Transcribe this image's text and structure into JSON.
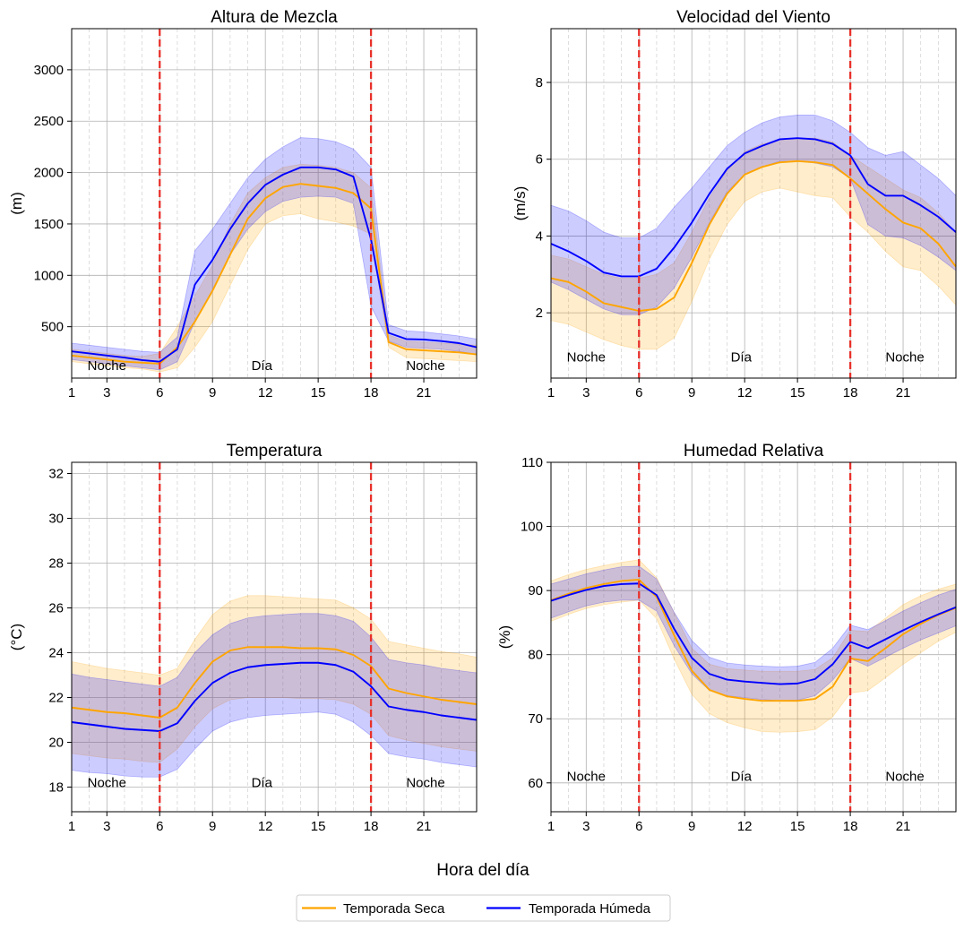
{
  "figure": {
    "xlabel": "Hora del día",
    "legend": {
      "placement": "bottom-center",
      "entries": [
        {
          "label": "Temporada Seca",
          "color": "#ffa500"
        },
        {
          "label": "Temporada Húmeda",
          "color": "#0000ff"
        }
      ]
    }
  },
  "chart_data": [
    {
      "type": "line",
      "title": "Altura de Mezcla",
      "ylabel": "(m)",
      "xlim": [
        1,
        24
      ],
      "ylim": [
        0,
        3400
      ],
      "xticks": [
        1,
        3,
        6,
        9,
        12,
        15,
        18,
        21
      ],
      "yticks": [
        500,
        1000,
        1500,
        2000,
        2500,
        3000
      ],
      "grid": true,
      "vlines": [
        6,
        18
      ],
      "region_labels": [
        {
          "x": 3,
          "text": "Noche"
        },
        {
          "x": 11.8,
          "text": "Día"
        },
        {
          "x": 21.1,
          "text": "Noche"
        }
      ],
      "region_label_y": 120,
      "x": [
        1,
        2,
        3,
        4,
        5,
        6,
        7,
        8,
        9,
        10,
        11,
        12,
        13,
        14,
        15,
        16,
        17,
        18,
        19,
        20,
        21,
        22,
        23,
        24
      ],
      "series": [
        {
          "name": "Temporada Seca",
          "color": "#ffa500",
          "values": [
            220,
            200,
            180,
            160,
            150,
            140,
            300,
            550,
            850,
            1200,
            1550,
            1750,
            1860,
            1890,
            1870,
            1850,
            1800,
            1650,
            350,
            280,
            270,
            260,
            250,
            230
          ],
          "upper": [
            280,
            260,
            240,
            220,
            210,
            240,
            500,
            800,
            1100,
            1500,
            1800,
            1950,
            2050,
            2080,
            2070,
            2050,
            2000,
            1850,
            420,
            360,
            350,
            340,
            330,
            320
          ],
          "lower": [
            160,
            140,
            120,
            100,
            90,
            60,
            100,
            300,
            550,
            900,
            1250,
            1500,
            1580,
            1600,
            1550,
            1520,
            1480,
            1400,
            300,
            200,
            190,
            180,
            170,
            160
          ]
        },
        {
          "name": "Temporada Húmeda",
          "color": "#0000ff",
          "values": [
            260,
            240,
            220,
            200,
            175,
            160,
            280,
            910,
            1150,
            1450,
            1700,
            1880,
            1980,
            2050,
            2050,
            2030,
            1960,
            1350,
            440,
            380,
            375,
            360,
            340,
            300
          ],
          "upper": [
            340,
            320,
            300,
            280,
            260,
            250,
            400,
            1240,
            1450,
            1700,
            1950,
            2130,
            2250,
            2340,
            2330,
            2300,
            2230,
            2050,
            520,
            460,
            450,
            430,
            410,
            380
          ],
          "lower": [
            180,
            160,
            140,
            120,
            100,
            80,
            160,
            550,
            850,
            1200,
            1450,
            1620,
            1720,
            1760,
            1770,
            1760,
            1700,
            700,
            360,
            300,
            290,
            280,
            260,
            230
          ]
        }
      ]
    },
    {
      "type": "line",
      "title": "Velocidad del Viento",
      "ylabel": "(m/s)",
      "xlim": [
        1,
        24
      ],
      "ylim": [
        0.3,
        9.4
      ],
      "xticks": [
        1,
        3,
        6,
        9,
        12,
        15,
        18,
        21
      ],
      "yticks": [
        2,
        4,
        6,
        8
      ],
      "grid": true,
      "vlines": [
        6,
        18
      ],
      "region_labels": [
        {
          "x": 3,
          "text": "Noche"
        },
        {
          "x": 11.8,
          "text": "Día"
        },
        {
          "x": 21.1,
          "text": "Noche"
        }
      ],
      "region_label_y": 0.85,
      "x": [
        1,
        2,
        3,
        4,
        5,
        6,
        7,
        8,
        9,
        10,
        11,
        12,
        13,
        14,
        15,
        16,
        17,
        18,
        19,
        20,
        21,
        22,
        23,
        24
      ],
      "series": [
        {
          "name": "Temporada Seca",
          "color": "#ffa500",
          "values": [
            2.9,
            2.8,
            2.55,
            2.25,
            2.15,
            2.05,
            2.1,
            2.4,
            3.3,
            4.3,
            5.1,
            5.6,
            5.8,
            5.92,
            5.95,
            5.92,
            5.85,
            5.5,
            5.1,
            4.7,
            4.35,
            4.2,
            3.8,
            3.2
          ],
          "upper": [
            3.5,
            3.4,
            3.2,
            3.0,
            2.9,
            2.9,
            3.0,
            3.3,
            4.1,
            5.0,
            5.7,
            6.2,
            6.4,
            6.5,
            6.55,
            6.55,
            6.45,
            6.1,
            5.8,
            5.5,
            5.2,
            5.0,
            4.6,
            4.1
          ],
          "lower": [
            1.8,
            1.7,
            1.5,
            1.3,
            1.15,
            1.05,
            1.05,
            1.35,
            2.3,
            3.4,
            4.3,
            4.9,
            5.15,
            5.25,
            5.15,
            5.05,
            5.0,
            4.5,
            4.1,
            3.6,
            3.2,
            3.1,
            2.7,
            2.2
          ]
        },
        {
          "name": "Temporada Húmeda",
          "color": "#0000ff",
          "values": [
            3.8,
            3.6,
            3.35,
            3.05,
            2.95,
            2.95,
            3.15,
            3.7,
            4.35,
            5.1,
            5.75,
            6.15,
            6.35,
            6.52,
            6.55,
            6.52,
            6.4,
            6.1,
            5.35,
            5.05,
            5.05,
            4.8,
            4.5,
            4.1
          ],
          "upper": [
            4.8,
            4.65,
            4.4,
            4.1,
            3.95,
            3.95,
            4.2,
            4.75,
            5.25,
            5.8,
            6.35,
            6.7,
            6.95,
            7.1,
            7.15,
            7.15,
            7.0,
            6.7,
            6.3,
            6.1,
            6.2,
            5.85,
            5.5,
            5.05
          ],
          "lower": [
            2.8,
            2.6,
            2.35,
            2.1,
            1.95,
            1.95,
            2.15,
            2.65,
            3.45,
            4.35,
            5.15,
            5.6,
            5.8,
            5.95,
            5.95,
            5.9,
            5.8,
            5.5,
            4.3,
            4.0,
            3.95,
            3.75,
            3.45,
            3.1
          ]
        }
      ]
    },
    {
      "type": "line",
      "title": "Temperatura",
      "ylabel": "(°C)",
      "xlim": [
        1,
        24
      ],
      "ylim": [
        16.9,
        32.5
      ],
      "xticks": [
        1,
        3,
        6,
        9,
        12,
        15,
        18,
        21
      ],
      "yticks": [
        18,
        20,
        22,
        24,
        26,
        28,
        30,
        32
      ],
      "grid": true,
      "vlines": [
        6,
        18
      ],
      "region_labels": [
        {
          "x": 3,
          "text": "Noche"
        },
        {
          "x": 11.8,
          "text": "Día"
        },
        {
          "x": 21.1,
          "text": "Noche"
        }
      ],
      "region_label_y": 18.2,
      "x": [
        1,
        2,
        3,
        4,
        5,
        6,
        7,
        8,
        9,
        10,
        11,
        12,
        13,
        14,
        15,
        16,
        17,
        18,
        19,
        20,
        21,
        22,
        23,
        24
      ],
      "series": [
        {
          "name": "Temporada Seca",
          "color": "#ffa500",
          "values": [
            21.55,
            21.45,
            21.35,
            21.3,
            21.2,
            21.1,
            21.55,
            22.65,
            23.6,
            24.1,
            24.25,
            24.25,
            24.25,
            24.2,
            24.2,
            24.15,
            23.9,
            23.4,
            22.4,
            22.2,
            22.05,
            21.9,
            21.8,
            21.7
          ],
          "upper": [
            23.6,
            23.45,
            23.3,
            23.2,
            23.1,
            23.0,
            23.3,
            24.6,
            25.7,
            26.3,
            26.55,
            26.55,
            26.5,
            26.45,
            26.4,
            26.35,
            26.0,
            25.5,
            24.5,
            24.35,
            24.2,
            24.05,
            23.95,
            23.8
          ],
          "lower": [
            19.5,
            19.4,
            19.3,
            19.25,
            19.15,
            19.1,
            19.7,
            20.7,
            21.5,
            21.9,
            22.0,
            22.0,
            22.0,
            21.95,
            21.95,
            21.9,
            21.7,
            21.25,
            20.3,
            20.1,
            19.95,
            19.8,
            19.7,
            19.6
          ]
        },
        {
          "name": "Temporada Húmeda",
          "color": "#0000ff",
          "values": [
            20.9,
            20.8,
            20.7,
            20.6,
            20.55,
            20.5,
            20.85,
            21.85,
            22.65,
            23.1,
            23.35,
            23.45,
            23.5,
            23.55,
            23.55,
            23.45,
            23.15,
            22.5,
            21.6,
            21.45,
            21.35,
            21.2,
            21.1,
            21.0
          ],
          "upper": [
            23.05,
            22.9,
            22.8,
            22.7,
            22.6,
            22.5,
            22.9,
            24.0,
            24.8,
            25.3,
            25.55,
            25.65,
            25.7,
            25.75,
            25.75,
            25.65,
            25.4,
            24.7,
            23.7,
            23.55,
            23.45,
            23.3,
            23.2,
            23.1
          ],
          "lower": [
            18.75,
            18.65,
            18.6,
            18.5,
            18.45,
            18.45,
            18.8,
            19.7,
            20.5,
            20.9,
            21.1,
            21.2,
            21.25,
            21.3,
            21.35,
            21.25,
            20.9,
            20.3,
            19.5,
            19.35,
            19.25,
            19.1,
            19.0,
            18.9
          ]
        }
      ]
    },
    {
      "type": "line",
      "title": "Humedad Relativa",
      "ylabel": "(%)",
      "xlim": [
        1,
        24
      ],
      "ylim": [
        55.5,
        110
      ],
      "xticks": [
        1,
        3,
        6,
        9,
        12,
        15,
        18,
        21
      ],
      "yticks": [
        60,
        70,
        80,
        90,
        100,
        110
      ],
      "grid": true,
      "vlines": [
        6,
        18
      ],
      "region_labels": [
        {
          "x": 3,
          "text": "Noche"
        },
        {
          "x": 11.8,
          "text": "Día"
        },
        {
          "x": 21.1,
          "text": "Noche"
        }
      ],
      "region_label_y": 61,
      "x": [
        1,
        2,
        3,
        4,
        5,
        6,
        7,
        8,
        9,
        10,
        11,
        12,
        13,
        14,
        15,
        16,
        17,
        18,
        19,
        20,
        21,
        22,
        23,
        24
      ],
      "series": [
        {
          "name": "Temporada Seca",
          "color": "#ffa500",
          "values": [
            88.5,
            89.5,
            90.4,
            91.0,
            91.5,
            91.7,
            89.0,
            83.0,
            77.5,
            74.5,
            73.5,
            73.1,
            72.8,
            72.8,
            72.8,
            73.1,
            75.0,
            79.4,
            79.0,
            81.0,
            83.2,
            84.8,
            86.2,
            87.3
          ],
          "upper": [
            91.5,
            92.5,
            93.3,
            93.9,
            94.4,
            94.8,
            92.0,
            86.5,
            81.0,
            78.5,
            77.8,
            77.6,
            77.4,
            77.4,
            77.4,
            77.7,
            79.5,
            83.8,
            83.6,
            85.7,
            87.8,
            89.2,
            90.2,
            91.0
          ],
          "lower": [
            85.2,
            86.3,
            87.2,
            87.8,
            88.2,
            88.5,
            85.6,
            79.3,
            73.8,
            70.8,
            69.4,
            68.6,
            68.0,
            67.9,
            68.0,
            68.3,
            70.3,
            74.0,
            74.4,
            76.4,
            78.5,
            80.3,
            82.1,
            83.5
          ]
        },
        {
          "name": "Temporada Húmeda",
          "color": "#0000ff",
          "values": [
            88.4,
            89.3,
            90.1,
            90.7,
            91.0,
            91.1,
            89.3,
            84.0,
            79.5,
            77.0,
            76.1,
            75.8,
            75.6,
            75.4,
            75.5,
            76.2,
            78.5,
            82.0,
            81.0,
            82.4,
            83.8,
            85.1,
            86.3,
            87.4
          ],
          "upper": [
            91.0,
            91.8,
            92.6,
            93.2,
            93.7,
            93.8,
            91.8,
            86.6,
            82.2,
            79.6,
            78.7,
            78.4,
            78.2,
            78.1,
            78.2,
            78.8,
            81.0,
            84.6,
            83.9,
            85.3,
            86.8,
            88.1,
            89.3,
            90.2
          ],
          "lower": [
            85.7,
            86.7,
            87.6,
            88.2,
            88.5,
            88.5,
            86.8,
            81.4,
            77.0,
            74.4,
            73.6,
            73.3,
            73.0,
            72.8,
            72.9,
            73.6,
            76.0,
            79.4,
            78.2,
            79.6,
            81.0,
            82.3,
            83.4,
            84.5
          ]
        }
      ]
    }
  ]
}
